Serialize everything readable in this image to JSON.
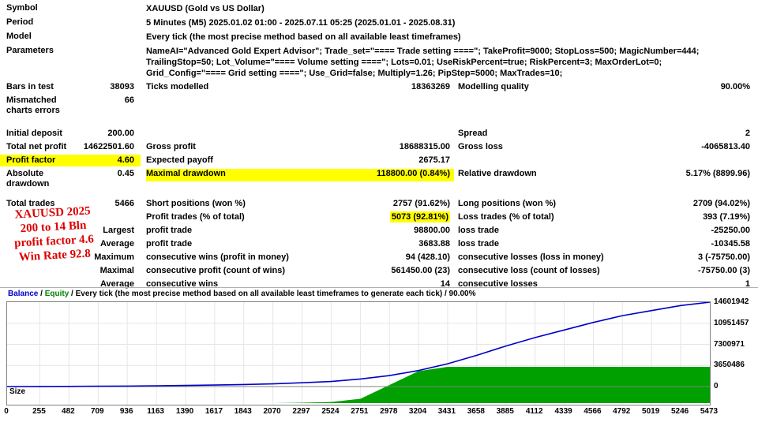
{
  "table": {
    "rows": [
      {
        "c1": "Symbol",
        "wide": "XAUUSD (Gold vs US Dollar)"
      },
      {
        "c1": "Period",
        "wide": "5 Minutes (M5) 2025.01.02 01:00 - 2025.07.11 05:25 (2025.01.01 - 2025.08.31)"
      },
      {
        "c1": "Model",
        "wide": "Every tick (the most precise method based on all available least timeframes)"
      },
      {
        "c1": "Parameters",
        "wide": "NameAI=\"Advanced Gold Expert Advisor\"; Trade_set=\"==== Trade setting ====\"; TakeProfit=9000; StopLoss=500; MagicNumber=444; TrailingStop=50; Lot_Volume=\"==== Volume setting ====\"; Lots=0.01; UseRiskPercent=true; RiskPercent=3; MaxOrderLot=0; Grid_Config=\"==== Grid setting ====\"; Use_Grid=false; Multiply=1.26; PipStep=5000; MaxTrades=10;"
      },
      {
        "c1": "Bars in test",
        "v1": "38093",
        "l2": "Ticks modelled",
        "v2": "18363269",
        "l3": "Modelling quality",
        "v3": "90.00%"
      },
      {
        "c1": "Mismatched charts errors",
        "v1": "66"
      },
      {
        "c1": "Initial deposit",
        "v1": "200.00",
        "l3": "Spread",
        "v3": "2"
      },
      {
        "c1": "Total net profit",
        "v1": "14622501.60",
        "l2": "Gross profit",
        "v2": "18688315.00",
        "l3": "Gross loss",
        "v3": "-4065813.40"
      },
      {
        "c1": "Profit factor",
        "v1": "4.60",
        "l2": "Expected payoff",
        "v2": "2675.17"
      },
      {
        "c1": "Absolute drawdown",
        "v1": "0.45",
        "l2": "Maximal drawdown",
        "v2": "118800.00 (0.84%)",
        "l3": "Relative drawdown",
        "v3": "5.17% (8899.96)"
      },
      {
        "c1": "Total trades",
        "v1": "5466",
        "l2": "Short positions (won %)",
        "v2": "2757 (91.62%)",
        "l3": "Long positions (won %)",
        "v3": "2709 (94.02%)"
      },
      {
        "l2": "Profit trades (% of total)",
        "v2": "5073 (92.81%)",
        "l3": "Loss trades (% of total)",
        "v3": "393 (7.19%)"
      },
      {
        "v1": "Largest",
        "l2": "profit trade",
        "v2": "98800.00",
        "l3": "loss trade",
        "v3": "-25250.00"
      },
      {
        "v1": "Average",
        "l2": "profit trade",
        "v2": "3683.88",
        "l3": "loss trade",
        "v3": "-10345.58"
      },
      {
        "v1": "Maximum",
        "l2": "consecutive wins (profit in money)",
        "v2": "94 (428.10)",
        "l3": "consecutive losses (loss in money)",
        "v3": "3 (-75750.00)"
      },
      {
        "v1": "Maximal",
        "l2": "consecutive profit (count of wins)",
        "v2": "561450.00 (23)",
        "l3": "consecutive loss (count of losses)",
        "v3": "-75750.00 (3)"
      },
      {
        "v1": "Average",
        "l2": "consecutive wins",
        "v2": "14",
        "l3": "consecutive losses",
        "v3": "1"
      }
    ]
  },
  "annotation": {
    "lines": [
      "XAUUSD 2025",
      "200 to 14 Bln",
      "profit factor 4.6",
      "Win Rate 92.8"
    ],
    "color": "#dd0000"
  },
  "colors": {
    "highlight": "#ffff00",
    "balance_line": "#0000c8",
    "size_fill": "#00a000",
    "grid": "#e6e6e6",
    "border": "#808080"
  },
  "chart_data": {
    "type": "area",
    "title": "Balance / Equity / Every tick (the most precise method based on all available least timeframes to generate each tick) / 90.00%",
    "legend": {
      "balance": "Balance",
      "sep1": " / ",
      "equity": "Equity",
      "rest": " / Every tick (the most precise method based on all available least timeframes to generate each tick) / 90.00%"
    },
    "size_axis_label": "Size",
    "xlim": [
      0,
      5473
    ],
    "ylim": [
      0,
      14601942
    ],
    "x_ticks": [
      0,
      255,
      482,
      709,
      936,
      1163,
      1390,
      1617,
      1843,
      2070,
      2297,
      2524,
      2751,
      2978,
      3204,
      3431,
      3658,
      3885,
      4112,
      4339,
      4566,
      4792,
      5019,
      5246,
      5473
    ],
    "y_ticks": [
      0,
      3650486,
      7300971,
      10951457,
      14601942
    ],
    "series": [
      {
        "name": "Balance",
        "type": "line",
        "color": "#0000c8",
        "x": [
          0,
          255,
          482,
          709,
          936,
          1163,
          1390,
          1617,
          1843,
          2070,
          2297,
          2524,
          2751,
          2978,
          3204,
          3431,
          3658,
          3885,
          4112,
          4339,
          4566,
          4792,
          5019,
          5246,
          5473
        ],
        "values": [
          200,
          15000,
          29000,
          58000,
          88000,
          131000,
          190000,
          263000,
          350000,
          467000,
          657000,
          876000,
          1314000,
          1898000,
          2774000,
          3943000,
          5403000,
          7009000,
          8469000,
          9783000,
          11098000,
          12266000,
          13142000,
          14018000,
          14601942
        ]
      },
      {
        "name": "Size",
        "type": "area",
        "color": "#00a000",
        "x": [
          0,
          255,
          482,
          709,
          936,
          1163,
          1390,
          1617,
          1843,
          2070,
          2297,
          2524,
          2751,
          2978,
          3204,
          3431,
          3658,
          3885,
          4112,
          4339,
          4566,
          4792,
          5019,
          5246,
          5473
        ],
        "values": [
          0,
          0,
          0,
          0,
          0,
          0,
          0,
          0,
          0,
          0,
          0.01,
          0.03,
          0.12,
          0.5,
          0.88,
          1,
          1,
          1,
          1,
          1,
          1,
          1,
          1,
          1,
          1
        ]
      }
    ]
  }
}
